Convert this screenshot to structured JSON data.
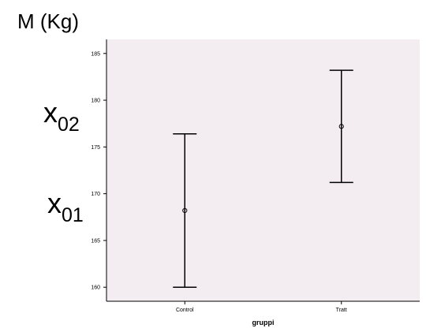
{
  "chart_data": {
    "type": "errorbar",
    "title": "",
    "xlabel": "gruppi",
    "ylabel": "M (Kg)",
    "categories": [
      "Control",
      "Tratt"
    ],
    "series": [
      {
        "mean": [
          168.2,
          177.2
        ],
        "lower": [
          160.0,
          171.2
        ],
        "upper": [
          176.4,
          183.2
        ]
      }
    ],
    "ylim": [
      158.5,
      186.5
    ],
    "yticks": [
      160,
      165,
      170,
      175,
      180,
      185
    ],
    "grid": false,
    "legend": "none",
    "annotations": [
      {
        "base": "x",
        "sub": "02",
        "near_y": 180
      },
      {
        "base": "x",
        "sub": "01",
        "near_y": 170
      }
    ],
    "colors": {
      "plot_background": "#f3ecf1",
      "marks": "#000000"
    }
  }
}
